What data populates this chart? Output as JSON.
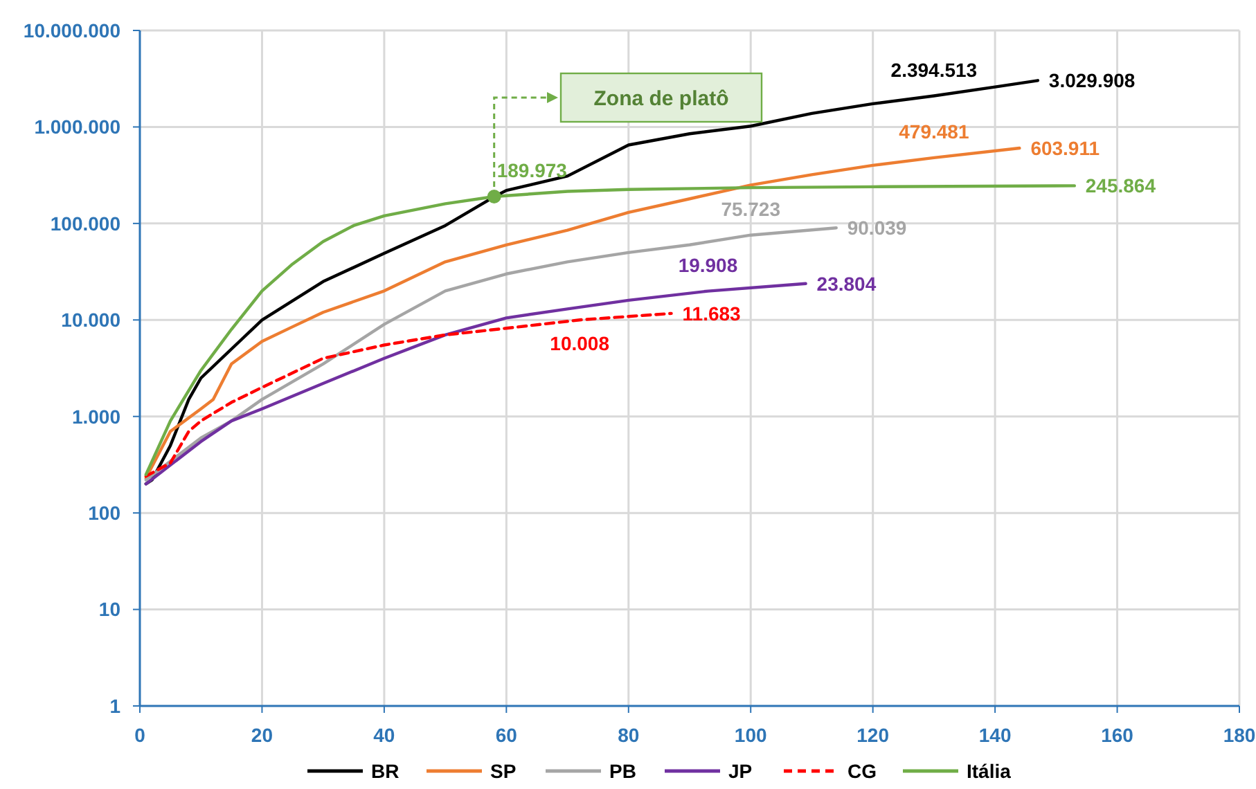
{
  "chart_data": {
    "type": "line",
    "log": "y",
    "grid": true,
    "legend": "bottom",
    "xlim": [
      0,
      180
    ],
    "xticks": [
      0,
      20,
      40,
      60,
      80,
      100,
      120,
      140,
      160,
      180
    ],
    "ylim": [
      1,
      10000000
    ],
    "yticks": [
      {
        "value": 1,
        "label": "1"
      },
      {
        "value": 10,
        "label": "10"
      },
      {
        "value": 100,
        "label": "100"
      },
      {
        "value": 1000,
        "label": "1.000"
      },
      {
        "value": 10000,
        "label": "10.000"
      },
      {
        "value": 100000,
        "label": "100.000"
      },
      {
        "value": 1000000,
        "label": "1.000.000"
      },
      {
        "value": 10000000,
        "label": "10.000.000"
      }
    ],
    "series": [
      {
        "name": "BR",
        "color": "#000000",
        "x": [
          1,
          2,
          5,
          8,
          10,
          15,
          20,
          30,
          40,
          50,
          58,
          60,
          70,
          80,
          90,
          100,
          110,
          120,
          130,
          140,
          147
        ],
        "values": [
          200,
          220,
          500,
          1500,
          2500,
          5000,
          10000,
          25000,
          49000,
          95000,
          189000,
          220000,
          310000,
          650000,
          850000,
          1020000,
          1380000,
          1740000,
          2100000,
          2600000,
          3029908
        ]
      },
      {
        "name": "SP",
        "color": "#ed7d31",
        "x": [
          1,
          5,
          10,
          12,
          15,
          20,
          25,
          30,
          40,
          50,
          60,
          70,
          80,
          90,
          100,
          110,
          120,
          130,
          144
        ],
        "values": [
          230,
          700,
          1200,
          1500,
          3500,
          6000,
          8500,
          12000,
          20000,
          40000,
          60000,
          85000,
          130000,
          180000,
          250000,
          320000,
          400000,
          479481,
          603911
        ]
      },
      {
        "name": "PB",
        "color": "#a5a5a5",
        "x": [
          1,
          10,
          15,
          20,
          30,
          40,
          50,
          60,
          70,
          80,
          90,
          100,
          114
        ],
        "values": [
          220,
          600,
          900,
          1500,
          3500,
          9000,
          20000,
          30000,
          40000,
          50000,
          60000,
          75723,
          90039
        ]
      },
      {
        "name": "JP",
        "color": "#7030a0",
        "x": [
          1,
          10,
          15,
          20,
          30,
          40,
          50,
          60,
          70,
          80,
          93,
          109
        ],
        "values": [
          200,
          550,
          900,
          1200,
          2200,
          4000,
          7000,
          10500,
          13000,
          16000,
          19908,
          23804
        ]
      },
      {
        "name": "CG",
        "color": "#ff0000",
        "line_style": "dashed",
        "x": [
          1,
          5,
          8,
          10,
          15,
          20,
          30,
          40,
          50,
          60,
          72,
          87
        ],
        "values": [
          240,
          330,
          700,
          900,
          1400,
          2000,
          4000,
          5500,
          7000,
          8200,
          10008,
          11683
        ]
      },
      {
        "name": "Itália",
        "color": "#70ad47",
        "x": [
          1,
          5,
          10,
          15,
          20,
          25,
          30,
          35,
          40,
          50,
          58,
          70,
          80,
          100,
          120,
          153
        ],
        "values": [
          250,
          900,
          3000,
          8000,
          20000,
          38000,
          65000,
          95000,
          120000,
          160000,
          189973,
          215000,
          225000,
          235000,
          240000,
          245864
        ]
      }
    ],
    "annotations": [
      {
        "text": "189.973",
        "x": 58,
        "y": 189973
      },
      "Zona de platô",
      {
        "text": "2.394.513",
        "x": 130,
        "y": 2100000
      },
      {
        "text": "3.029.908",
        "x": 147,
        "y": 3029908
      },
      {
        "text": "479.481",
        "x": 130,
        "y": 479481
      },
      {
        "text": "603.911",
        "x": 144,
        "y": 603911
      },
      {
        "text": "245.864",
        "x": 153,
        "y": 245864
      },
      {
        "text": "75.723",
        "x": 100,
        "y": 75723
      },
      {
        "text": "90.039",
        "x": 114,
        "y": 90039
      },
      {
        "text": "19.908",
        "x": 93,
        "y": 19908
      },
      {
        "text": "23.804",
        "x": 109,
        "y": 23804
      },
      {
        "text": "10.008",
        "x": 72,
        "y": 10008
      },
      {
        "text": "11.683",
        "x": 87,
        "y": 11683
      }
    ]
  }
}
